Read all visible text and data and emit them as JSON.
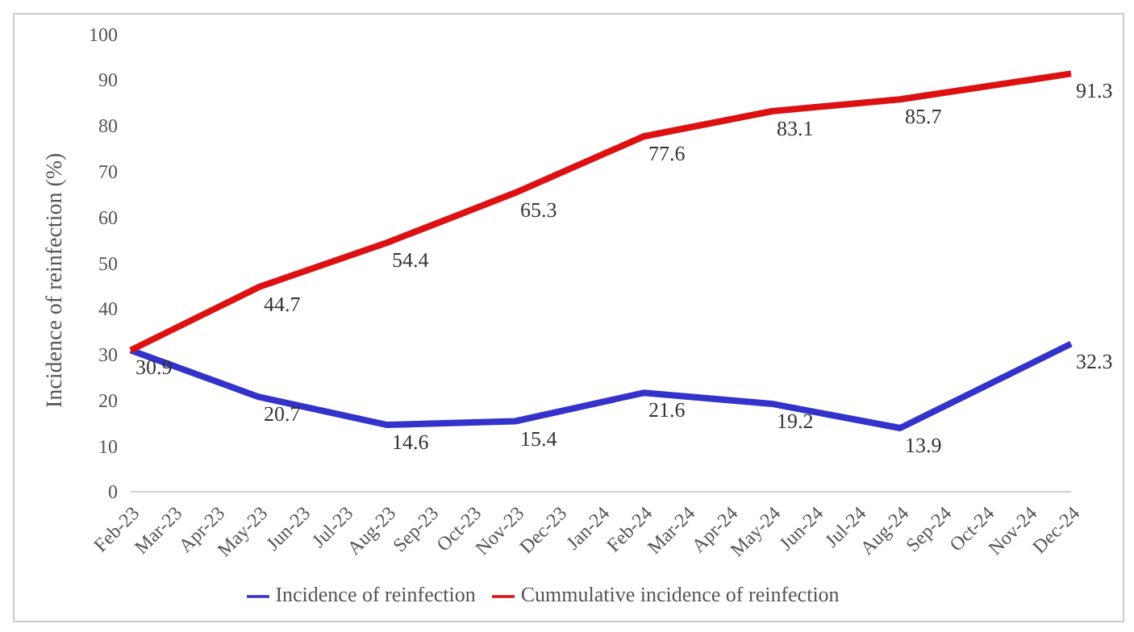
{
  "chart_data": {
    "type": "line",
    "ylabel": "Incidence of reinfection (%)",
    "categories": [
      "Feb-23",
      "Mar-23",
      "Apr-23",
      "May-23",
      "Jun-23",
      "Jul-23",
      "Aug-23",
      "Sep-23",
      "Oct-23",
      "Nov-23",
      "Dec-23",
      "Jan-24",
      "Feb-24",
      "Mar-24",
      "Apr-24",
      "May-24",
      "Jun-24",
      "Jul-24",
      "Aug-24",
      "Sep-24",
      "Oct-24",
      "Nov-24",
      "Dec-24"
    ],
    "series": [
      {
        "name": "Incidence of reinfection",
        "color": "#3333cc",
        "values": [
          30.9,
          null,
          null,
          20.7,
          null,
          null,
          14.6,
          null,
          null,
          15.4,
          null,
          null,
          21.6,
          null,
          null,
          19.2,
          null,
          null,
          13.9,
          null,
          null,
          null,
          32.3
        ],
        "value_labels": [
          "30.9",
          null,
          null,
          "20.7",
          null,
          null,
          "14.6",
          null,
          null,
          "15.4",
          null,
          null,
          "21.6",
          null,
          null,
          "19.2",
          null,
          null,
          "13.9",
          null,
          null,
          null,
          "32.3"
        ]
      },
      {
        "name": "Cummulative incidence of reinfection",
        "color": "#dd1111",
        "values": [
          30.9,
          null,
          null,
          44.7,
          null,
          null,
          54.4,
          null,
          null,
          65.3,
          null,
          null,
          77.6,
          null,
          null,
          83.1,
          null,
          null,
          85.7,
          null,
          null,
          null,
          91.3
        ],
        "value_labels": [
          null,
          null,
          null,
          "44.7",
          null,
          null,
          "54.4",
          null,
          null,
          "65.3",
          null,
          null,
          "77.6",
          null,
          null,
          "83.1",
          null,
          null,
          "85.7",
          null,
          null,
          null,
          "91.3"
        ]
      }
    ],
    "ylim": [
      0,
      100
    ],
    "yticks": [
      0,
      10,
      20,
      30,
      40,
      50,
      60,
      70,
      80,
      90,
      100
    ],
    "legend": "bottom",
    "marker": "none",
    "line_style": "solid",
    "grid": false
  }
}
